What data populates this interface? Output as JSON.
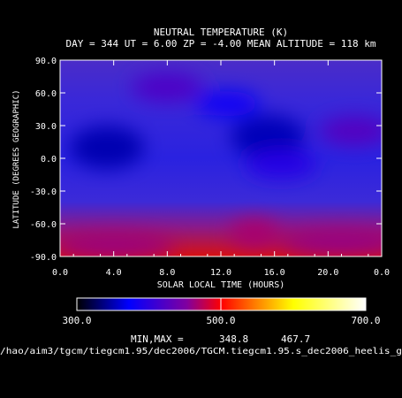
{
  "chart_data": {
    "type": "heatmap",
    "title": "NEUTRAL TEMPERATURE (K)",
    "subtitle": "DAY = 344   UT =  6.00   ZP =  -4.00   MEAN ALTITUDE = 118 km",
    "xlabel": "SOLAR LOCAL TIME (HOURS)",
    "ylabel": "LATITUDE (DEGREES GEOGRAPHIC)",
    "xlim": [
      0.0,
      24.0
    ],
    "ylim": [
      -90.0,
      90.0
    ],
    "x_ticks": [
      "0.0",
      "4.0",
      "8.0",
      "12.0",
      "16.0",
      "20.0",
      "0.0"
    ],
    "y_ticks": [
      "90.0",
      "60.0",
      "30.0",
      "0.0",
      "-30.0",
      "-60.0",
      "-90.0"
    ],
    "colorbar": {
      "range": [
        300.0,
        700.0
      ],
      "tick_labels": [
        "300.0",
        "500.0",
        "700.0"
      ],
      "colors": [
        "#000000",
        "#0000ff",
        "#8000a0",
        "#ff0000",
        "#ff8000",
        "#ffff00",
        "#ffffff"
      ]
    },
    "minmax_label": "MIN,MAX =",
    "min": "348.8",
    "max": "467.7",
    "footer": "/hao/aim3/tgcm/tiegcm1.95/dec2006/TGCM.tiegcm1.95.s_dec2006_heelis_g",
    "features": [
      {
        "kind": "cold-core",
        "x": 3.5,
        "y": 10,
        "value": 350
      },
      {
        "kind": "cold-core",
        "x": 15.5,
        "y": 20,
        "value": 352
      },
      {
        "kind": "cold-cell",
        "x": 12.5,
        "y": 50,
        "value": 380
      },
      {
        "kind": "warm-cell",
        "x": 8.0,
        "y": 65,
        "value": 420
      },
      {
        "kind": "warm-cell",
        "x": 22.0,
        "y": 25,
        "value": 425
      },
      {
        "kind": "warm-cell",
        "x": 16.5,
        "y": -5,
        "value": 395
      },
      {
        "kind": "hot-cell",
        "x": 14.5,
        "y": -69,
        "value": 467
      },
      {
        "kind": "hot-band",
        "x": 4.0,
        "y": -80,
        "value": 462
      },
      {
        "kind": "hot-band",
        "x": 21.0,
        "y": -77,
        "value": 460
      }
    ]
  }
}
